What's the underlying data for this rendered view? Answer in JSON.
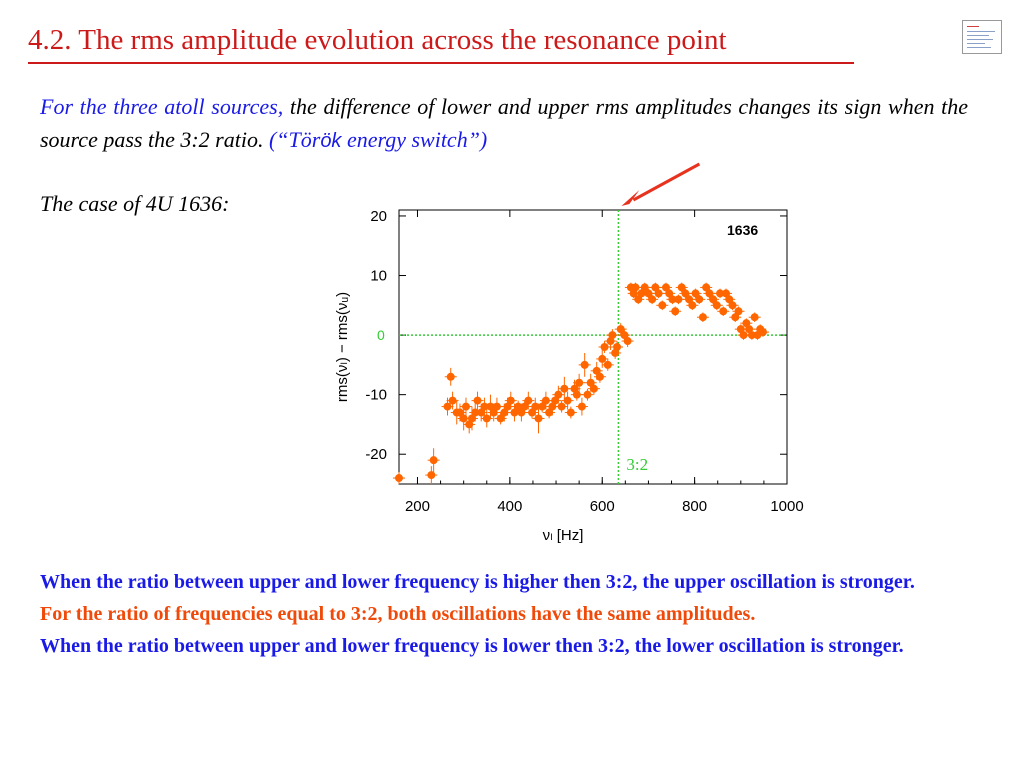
{
  "slide": {
    "title": "4.2. The rms amplitude evolution across the resonance point",
    "intro": {
      "lead": "For the three atoll sources,",
      "body": " the difference of  lower and upper rms amplitudes changes its sign when the source pass the 3:2 ratio.  ",
      "quote_open": "(“Tör",
      "quote_sans": "ök",
      "quote_close": " energy switch”)"
    },
    "case_label": "The case of 4U 1636:",
    "conclusions": [
      {
        "text": "When the ratio between upper and lower frequency is higher then 3:2, the upper oscillation is stronger.",
        "color": "#1a1ae6"
      },
      {
        "text": "For the ratio of frequencies equal to 3:2, both oscillations have the same amplitudes.",
        "color": "#f04a0a"
      },
      {
        "text": "When the ratio between upper and lower frequency is lower then 3:2, the lower oscillation is stronger.",
        "color": "#1a1ae6"
      }
    ]
  },
  "chart_data": {
    "type": "scatter",
    "title": "1636",
    "xlabel": "νₗ [Hz]",
    "ylabel": "rms(νₗ) − rms(νᵤ)",
    "xlim": [
      160,
      1000
    ],
    "ylim": [
      -25,
      21
    ],
    "xticks": [
      200,
      400,
      600,
      800,
      1000
    ],
    "yticks": [
      20,
      10,
      0,
      -10,
      -20
    ],
    "zero_label": "0",
    "resonance": {
      "x": 635,
      "label": "3:2"
    },
    "colors": {
      "points": "#ff6600",
      "guides": "#33cc33",
      "arrow": "#e8321e"
    },
    "series": [
      {
        "x": [
          160,
          230,
          235,
          265,
          272,
          276,
          285,
          292,
          300,
          305,
          312,
          318,
          325,
          330,
          338,
          345,
          350,
          358,
          365,
          372,
          380,
          388,
          395,
          402,
          410,
          418,
          425,
          432,
          440,
          448,
          455,
          462,
          470,
          478,
          485,
          492,
          498,
          505,
          512,
          518,
          525,
          532,
          540,
          545,
          550,
          556,
          562,
          568,
          575,
          582,
          588,
          595,
          600,
          605,
          612,
          618,
          622,
          628,
          632,
          640,
          648,
          655,
          662,
          668,
          672,
          678,
          685,
          692,
          700,
          708,
          715,
          722,
          730,
          738,
          745,
          752,
          758,
          765,
          772,
          780,
          788,
          795,
          802,
          810,
          818,
          825,
          832,
          840,
          848,
          855,
          862,
          868,
          875,
          882,
          888,
          895,
          900,
          906,
          912,
          918,
          924,
          930,
          936,
          942,
          948
        ],
        "y": [
          -24,
          -23.5,
          -21,
          -12,
          -7,
          -11,
          -13,
          -13,
          -14,
          -12,
          -15,
          -14,
          -13,
          -11,
          -13,
          -12,
          -14,
          -12,
          -13,
          -12,
          -14,
          -13,
          -12,
          -11,
          -13,
          -12,
          -13,
          -12,
          -11,
          -13,
          -12,
          -14,
          -12,
          -11,
          -13,
          -12,
          -11,
          -10,
          -12,
          -9,
          -11,
          -13,
          -9,
          -10,
          -8,
          -12,
          -5,
          -10,
          -8,
          -9,
          -6,
          -7,
          -4,
          -2,
          -5,
          -1,
          0,
          -3,
          -2,
          1,
          0,
          -1,
          8,
          7,
          8,
          6,
          7,
          8,
          7,
          6,
          8,
          7,
          5,
          8,
          7,
          6,
          4,
          6,
          8,
          7,
          6,
          5,
          7,
          6,
          3,
          8,
          7,
          6,
          5,
          7,
          4,
          7,
          6,
          5,
          3,
          4,
          1,
          0,
          2,
          1,
          0,
          3,
          0,
          1,
          0.5
        ],
        "err": [
          1,
          1.5,
          2,
          1.5,
          1.5,
          1.5,
          2,
          1.5,
          2,
          1.5,
          1.5,
          2,
          1.5,
          1.5,
          1.5,
          1.5,
          1.5,
          2,
          1.5,
          1.5,
          1,
          1.5,
          1.5,
          1.5,
          1.5,
          1,
          1.5,
          1,
          1.5,
          1,
          1.5,
          2.5,
          1,
          1.5,
          1,
          1.5,
          1,
          1.5,
          1,
          2,
          1.5,
          1,
          1.5,
          1,
          1.5,
          1.5,
          2,
          1,
          1.5,
          1,
          1.5,
          1,
          1.5,
          1,
          1,
          1.5,
          1,
          1,
          1,
          1,
          1,
          1,
          0.8,
          0.8,
          0.8,
          0.8,
          0.8,
          0.8,
          0.8,
          0.8,
          0.8,
          0.8,
          0.8,
          0.8,
          0.8,
          0.8,
          0.8,
          0.8,
          0.8,
          0.8,
          0.8,
          0.8,
          0.8,
          0.8,
          0.8,
          0.8,
          0.8,
          0.8,
          0.8,
          0.8,
          0.8,
          0.8,
          0.8,
          0.8,
          0.8,
          0.8,
          0.8,
          0.8,
          0.8,
          0.8,
          0.8,
          0.8,
          0.8,
          0.8,
          0.8
        ]
      }
    ]
  }
}
